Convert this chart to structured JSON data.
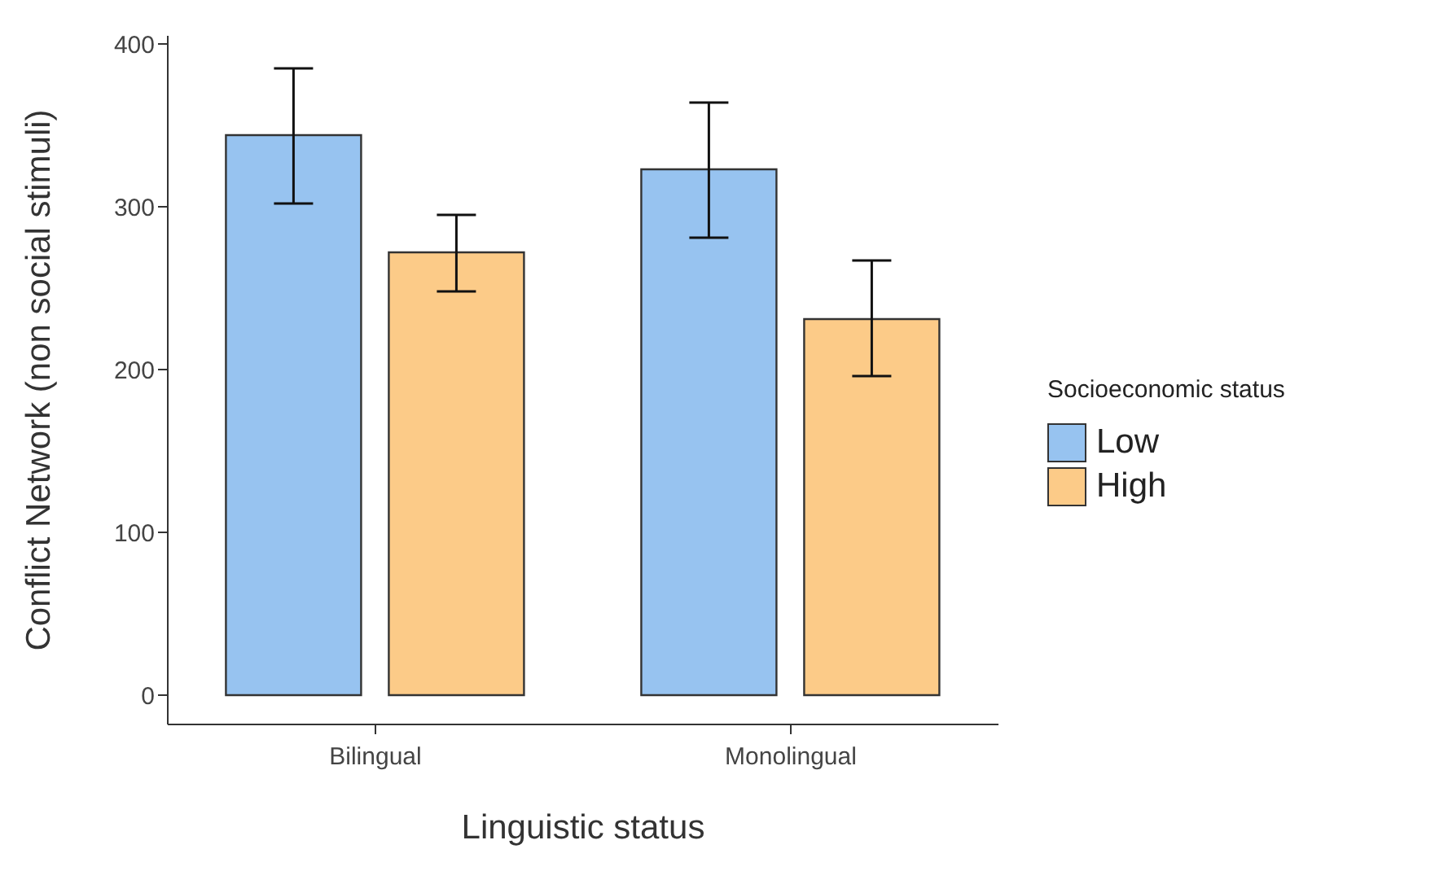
{
  "chart_data": {
    "type": "bar",
    "xlabel": "Linguistic status",
    "ylabel": "Conflict Network (non social stimuli)",
    "legend_title": "Socioeconomic status",
    "categories": [
      "Bilingual",
      "Monolingual"
    ],
    "series": [
      {
        "name": "Low",
        "color": "#97c3f0",
        "values": [
          344,
          323
        ],
        "errors": [
          [
            302,
            385
          ],
          [
            281,
            364
          ]
        ]
      },
      {
        "name": "High",
        "color": "#fccb88",
        "values": [
          272,
          231
        ],
        "errors": [
          [
            248,
            295
          ],
          [
            196,
            267
          ]
        ]
      }
    ],
    "ylim": [
      -18,
      405
    ],
    "yticks": [
      0,
      100,
      200,
      300,
      400
    ],
    "legend": "right",
    "grid": false
  }
}
